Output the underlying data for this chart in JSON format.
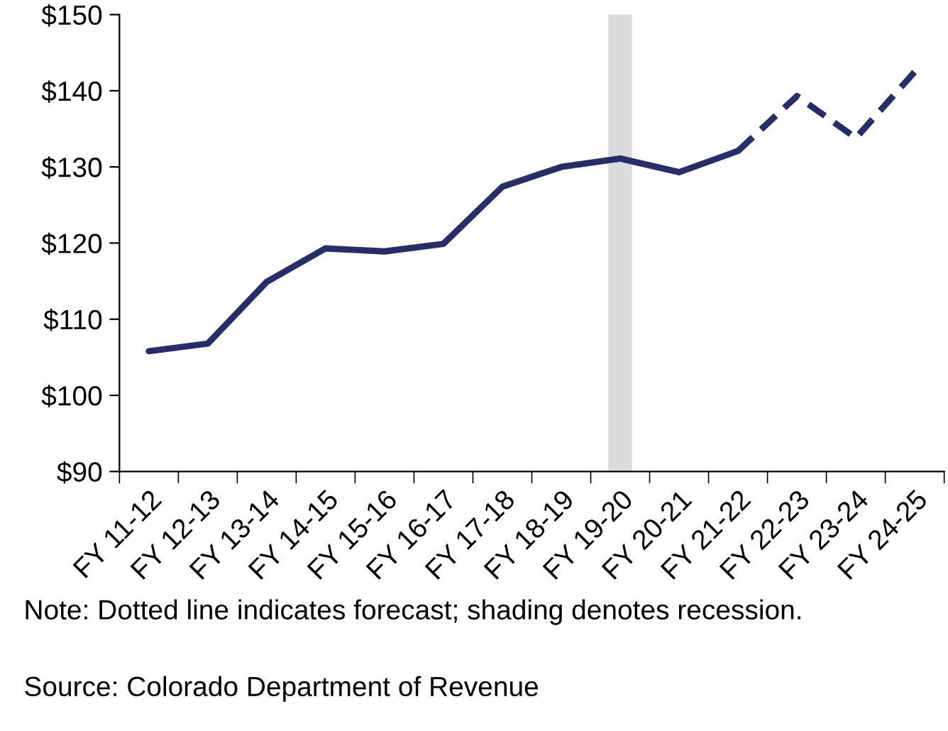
{
  "chart_data": {
    "type": "line",
    "categories": [
      "FY 11-12",
      "FY 12-13",
      "FY 13-14",
      "FY 14-15",
      "FY 15-16",
      "FY 16-17",
      "FY 17-18",
      "FY 18-19",
      "FY 19-20",
      "FY 20-21",
      "FY 21-22",
      "FY 22-23",
      "FY 23-24",
      "FY 24-25"
    ],
    "series": [
      {
        "color": "#262d6b",
        "line_style": "solid",
        "values": [
          105.8,
          106.8,
          114.9,
          119.3,
          118.9,
          119.9,
          127.4,
          130.0,
          131.1,
          129.3,
          132.1,
          null,
          null,
          null
        ]
      },
      {
        "color": "#262d6b",
        "line_style": "dashed",
        "values": [
          null,
          null,
          null,
          null,
          null,
          null,
          null,
          null,
          null,
          null,
          132.1,
          139.3,
          133.8,
          142.5
        ]
      }
    ],
    "ylim": [
      90,
      150
    ],
    "yticks": [
      {
        "value": 90,
        "label": "$90"
      },
      {
        "value": 100,
        "label": "$100"
      },
      {
        "value": 110,
        "label": "$110"
      },
      {
        "value": 120,
        "label": "$120"
      },
      {
        "value": 130,
        "label": "$130"
      },
      {
        "value": 140,
        "label": "$140"
      },
      {
        "value": 150,
        "label": "$150"
      }
    ],
    "bands": [
      {
        "axis": "x",
        "from": "FY 19-20",
        "to": "FY 19-20",
        "color": "#dcdbdc"
      }
    ],
    "grid": false,
    "legend": false,
    "marker": "none",
    "annotations": [
      "Note: Dotted line indicates forecast; shading denotes recession.",
      "Source: Colorado Department of Revenue"
    ]
  }
}
